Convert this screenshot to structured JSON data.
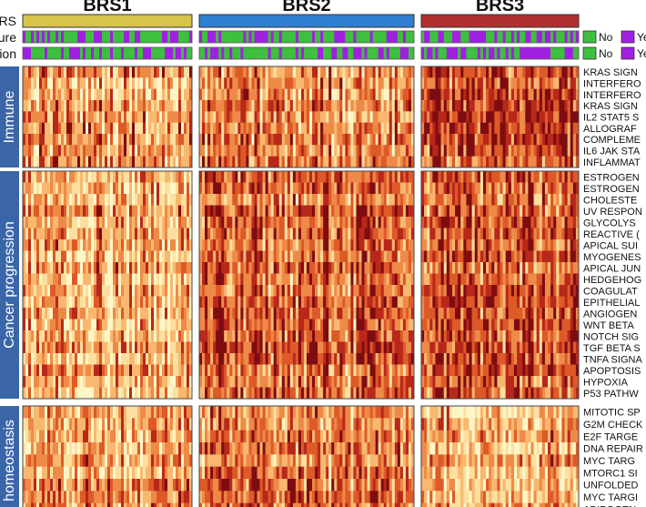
{
  "chart_data": {
    "type": "heatmap",
    "column_groups": [
      {
        "label": "BRS1",
        "color": "#d8c44a",
        "n": 62
      },
      {
        "label": "BRS2",
        "color": "#2f7fd0",
        "n": 78
      },
      {
        "label": "BRS3",
        "color": "#b03030",
        "n": 56
      }
    ],
    "annotation_tracks": [
      {
        "label": "RS"
      },
      {
        "label": "ure"
      },
      {
        "label": "ion"
      }
    ],
    "annotation_legend": [
      {
        "label": "No",
        "color": "#3fbf3f"
      },
      {
        "label": "Ye",
        "color": "#a020e0"
      }
    ],
    "row_groups": [
      {
        "label": "Immune",
        "rows": [
          "KRAS SIGN",
          "INTERFERO",
          "INTERFERO",
          "KRAS SIGN",
          "IL2 STAT5 S",
          "ALLOGRAF",
          "COMPLEME",
          "IL6 JAK STA",
          "INFLAMMAT"
        ]
      },
      {
        "label": "Cancer progression",
        "rows": [
          "ESTROGEN",
          "ESTROGEN",
          "CHOLESTE",
          "UV RESPON",
          "GLYCOLYS",
          "REACTIVE (",
          "APICAL SUI",
          "MYOGENES",
          "APICAL JUN",
          "HEDGEHOG",
          "COAGULAT",
          "EPITHELIAL",
          "ANGIOGEN",
          "WNT BETA",
          "NOTCH SIG",
          "TGF BETA S",
          "TNFA SIGNA",
          "APOPTOSIS",
          "HYPOXIA",
          "P53 PATHW"
        ]
      },
      {
        "label": "homeostasis",
        "rows": [
          "MITOTIC SP",
          "G2M CHECK",
          "E2F TARGE",
          "DNA REPAIR",
          "MYC TARG",
          "MTORC1 SI",
          "UNFOLDED",
          "MYC TARGI",
          "ADIPOGEN"
        ]
      }
    ],
    "color_scale": [
      "#fff6c8",
      "#fde0a0",
      "#f8b870",
      "#ee8a48",
      "#dd5a28",
      "#b8281a",
      "#7e0c10"
    ],
    "group_bias": [
      [
        0.42,
        0.5,
        0.72
      ],
      [
        0.4,
        0.6,
        0.62
      ],
      [
        0.48,
        0.56,
        0.4
      ]
    ]
  }
}
